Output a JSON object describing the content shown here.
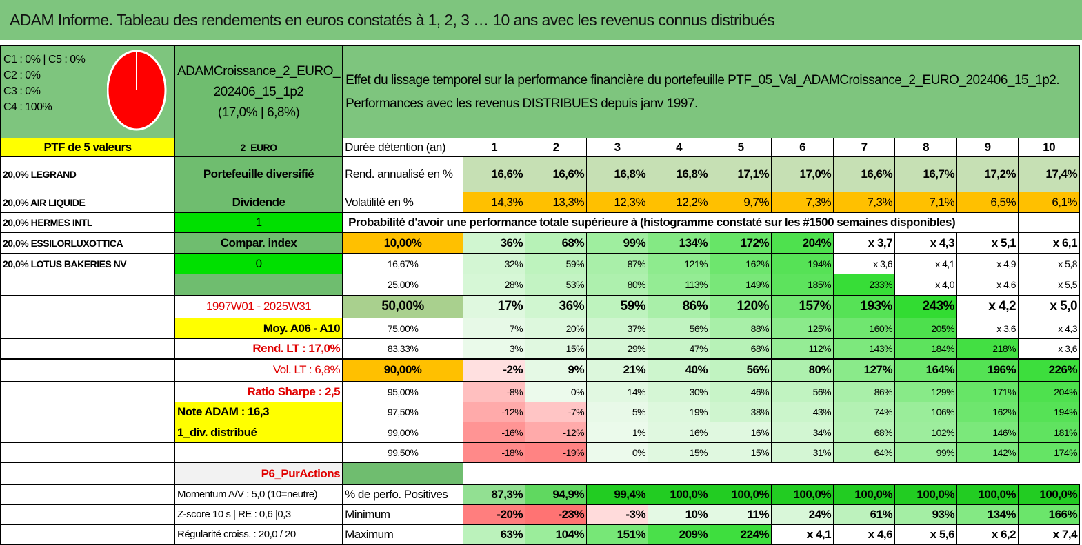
{
  "title": "ADAM Informe. Tableau des rendements en euros constatés à 1, 2, 3 … 10 ans avec les revenus connus distribués",
  "allocation": {
    "legend": [
      "C1 : 0% | C5 : 0%",
      "C2 : 0%",
      "C3 : 0%",
      "C4 : 100%"
    ],
    "pie_color": "#ff0000",
    "pie_values": [
      0,
      0,
      0,
      100,
      0
    ]
  },
  "product": {
    "line1": "ADAMCroissance_2_EURO_",
    "line2": "202406_15_1p2",
    "line3": "(17,0% | 6,8%)"
  },
  "effect": {
    "line1": "Effet du lissage temporel sur la performance financière du portefeuille PTF_05_Val_ADAMCroissance_2_EURO_202406_15_1p2.",
    "line2": "Performances avec les revenus DISTRIBUES depuis janv 1997."
  },
  "ptf_header": "PTF de 5 valeurs",
  "currency": "2_EURO",
  "duration_label": "Durée détention (an)",
  "years": [
    "1",
    "2",
    "3",
    "4",
    "5",
    "6",
    "7",
    "8",
    "9",
    "10"
  ],
  "holdings": [
    "20,0% LEGRAND",
    "20,0% AIR LIQUIDE",
    "20,0% HERMES INTL",
    "20,0% ESSILORLUXOTTICA",
    "20,0% LOTUS BAKERIES NV"
  ],
  "info": {
    "portfolio_type": "Portefeuille diversifié",
    "dividend_label": "Dividende",
    "dividend_value": "1",
    "compar_label": "Compar. index",
    "compar_value": "0",
    "period": "1997W01 - 2025W31",
    "moy": "Moy. A06 - A10",
    "rend_lt": "Rend. LT : 17,0%",
    "vol_lt": "Vol. LT : 6,8%",
    "sharpe": "Ratio Sharpe : 2,5",
    "note": "Note ADAM : 16,3",
    "div_distrib": "1_div. distribué",
    "p6": "P6_PurActions",
    "momentum": "Momentum A/V : 5,0 (10=neutre)",
    "zscore": "Z-score 10 s | RE : 0,6 |0,3",
    "regularite": "Régularité croiss. : 20,0 / 20"
  },
  "rend": {
    "label": "Rend. annualisé en %",
    "values": [
      "16,6%",
      "16,6%",
      "16,8%",
      "16,8%",
      "17,1%",
      "17,0%",
      "16,6%",
      "16,7%",
      "17,2%",
      "17,4%"
    ]
  },
  "vol": {
    "label": "Volatilité en %",
    "values": [
      "14,3%",
      "13,3%",
      "12,3%",
      "12,2%",
      "9,7%",
      "7,3%",
      "7,3%",
      "7,1%",
      "6,5%",
      "6,1%"
    ]
  },
  "prob_header": "Probabilité d'avoir une performance totale supérieure à (histogramme constaté sur les #1500 semaines disponibles)",
  "prob_rows": [
    {
      "p": "10,00%",
      "v": [
        "36%",
        "68%",
        "99%",
        "134%",
        "172%",
        "204%",
        "x 3,7",
        "x 4,3",
        "x 5,1",
        "x 6,1"
      ]
    },
    {
      "p": "16,67%",
      "v": [
        "32%",
        "59%",
        "87%",
        "121%",
        "162%",
        "194%",
        "x 3,6",
        "x 4,1",
        "x 4,9",
        "x 5,8"
      ]
    },
    {
      "p": "25,00%",
      "v": [
        "28%",
        "53%",
        "80%",
        "113%",
        "149%",
        "185%",
        "233%",
        "x 4,0",
        "x 4,6",
        "x 5,5"
      ]
    },
    {
      "p": "50,00%",
      "v": [
        "17%",
        "36%",
        "59%",
        "86%",
        "120%",
        "157%",
        "193%",
        "243%",
        "x 4,2",
        "x 5,0"
      ]
    },
    {
      "p": "75,00%",
      "v": [
        "7%",
        "20%",
        "37%",
        "56%",
        "88%",
        "125%",
        "160%",
        "205%",
        "x 3,6",
        "x 4,3"
      ]
    },
    {
      "p": "83,33%",
      "v": [
        "3%",
        "15%",
        "29%",
        "47%",
        "68%",
        "112%",
        "143%",
        "184%",
        "218%",
        "x 3,6"
      ]
    },
    {
      "p": "90,00%",
      "v": [
        "-2%",
        "9%",
        "21%",
        "40%",
        "56%",
        "80%",
        "127%",
        "164%",
        "196%",
        "226%"
      ]
    },
    {
      "p": "95,00%",
      "v": [
        "-8%",
        "0%",
        "14%",
        "30%",
        "46%",
        "56%",
        "86%",
        "129%",
        "171%",
        "204%"
      ]
    },
    {
      "p": "97,50%",
      "v": [
        "-12%",
        "-7%",
        "5%",
        "19%",
        "38%",
        "43%",
        "74%",
        "106%",
        "162%",
        "194%"
      ]
    },
    {
      "p": "99,00%",
      "v": [
        "-16%",
        "-12%",
        "1%",
        "16%",
        "16%",
        "34%",
        "68%",
        "102%",
        "146%",
        "181%"
      ]
    },
    {
      "p": "99,50%",
      "v": [
        "-18%",
        "-19%",
        "0%",
        "15%",
        "15%",
        "31%",
        "64%",
        "99%",
        "142%",
        "174%"
      ]
    }
  ],
  "positives": {
    "label": "% de perfo. Positives",
    "values": [
      "87,3%",
      "94,9%",
      "99,4%",
      "100,0%",
      "100,0%",
      "100,0%",
      "100,0%",
      "100,0%",
      "100,0%",
      "100,0%"
    ]
  },
  "minimum": {
    "label": "Minimum",
    "values": [
      "-20%",
      "-23%",
      "-3%",
      "10%",
      "11%",
      "24%",
      "61%",
      "93%",
      "134%",
      "166%"
    ]
  },
  "maximum": {
    "label": "Maximum",
    "values": [
      "63%",
      "104%",
      "151%",
      "209%",
      "224%",
      "x 4,1",
      "x 4,6",
      "x 5,6",
      "x 6,2",
      "x 7,4"
    ]
  }
}
